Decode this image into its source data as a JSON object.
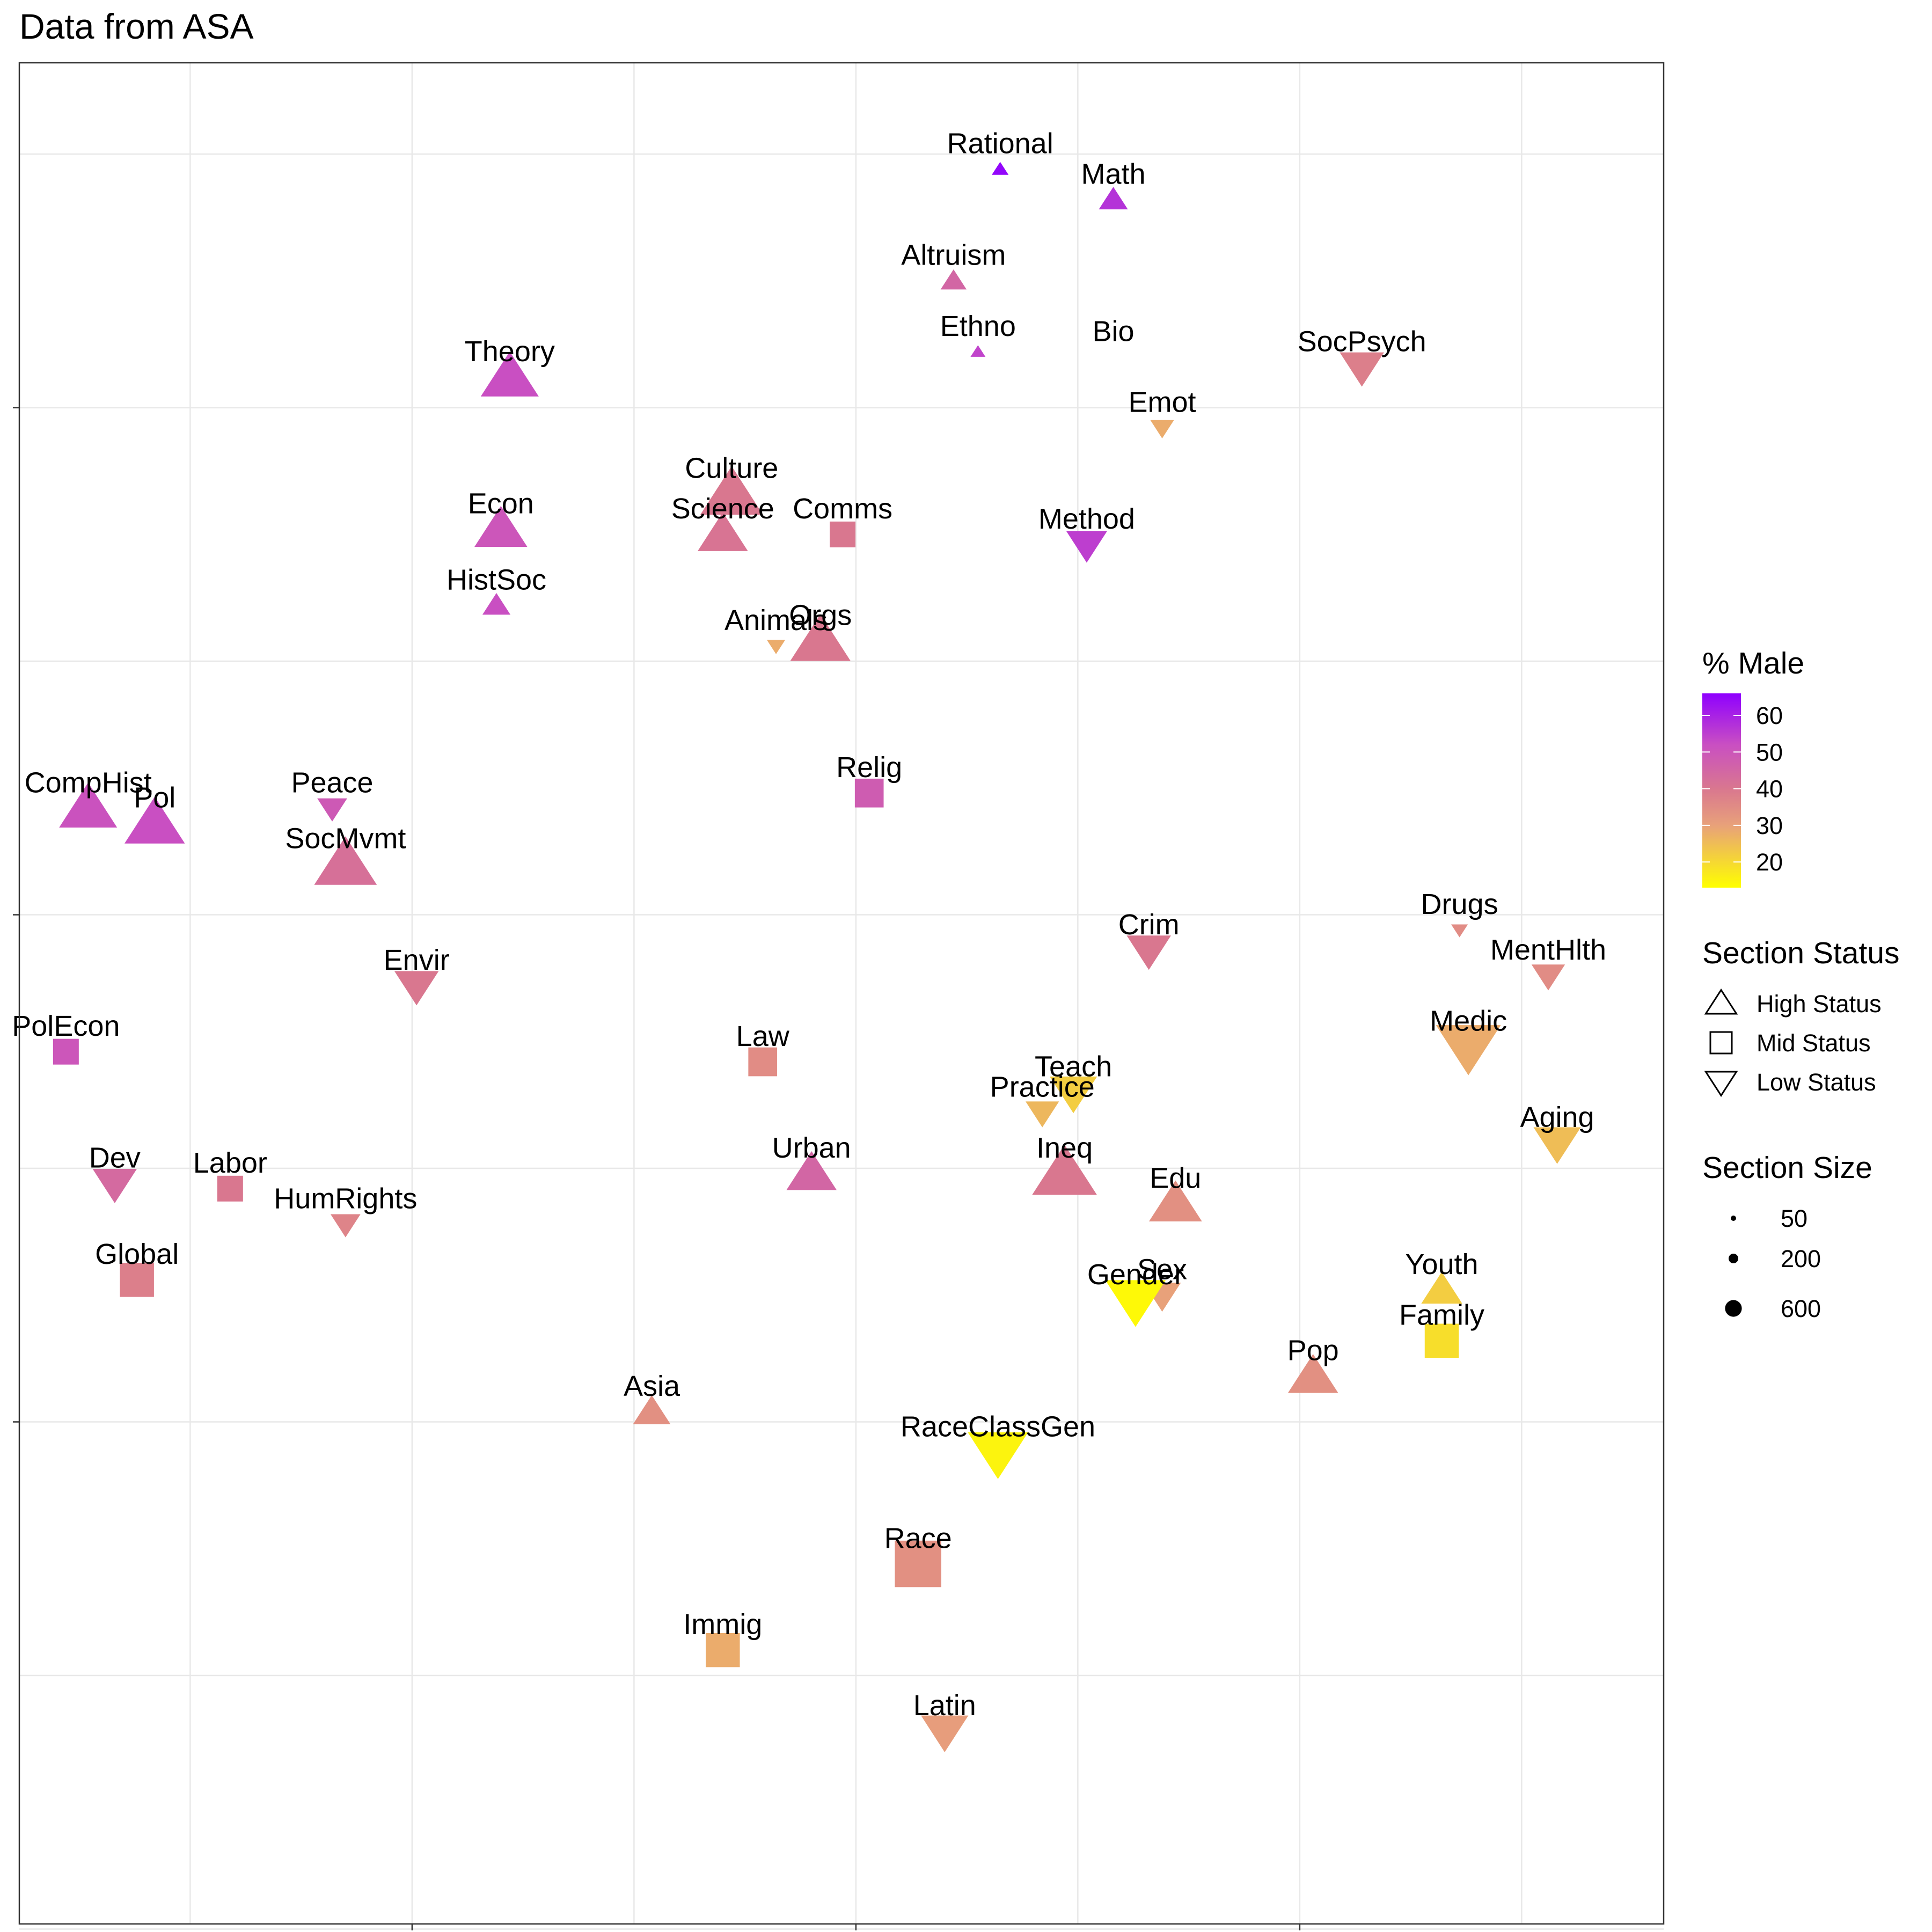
{
  "chart_data": {
    "type": "scatter",
    "title": "Data from ASA",
    "xlabel": "",
    "ylabel": "",
    "x_range": [
      -1.885,
      1.82
    ],
    "y_range": [
      -1.49,
      2.18
    ],
    "x_gridlines": [
      -1.5,
      -1.0,
      -0.5,
      0.0,
      0.5,
      1.0,
      1.5
    ],
    "y_gridlines": [
      2.0,
      1.5,
      1.0,
      0.5,
      0.0,
      -0.5,
      -1.0,
      -1.5
    ],
    "x_tick_marks": [
      -1.0,
      0.0,
      1.0
    ],
    "y_tick_marks": [
      1.5,
      0.5,
      -0.5
    ],
    "color_scale": {
      "title": "% Male",
      "min": 13,
      "max": 66,
      "stops": [
        {
          "value": 13,
          "color": "#ffff00"
        },
        {
          "value": 30,
          "color": "#e8a17a"
        },
        {
          "value": 40,
          "color": "#d9778f"
        },
        {
          "value": 52,
          "color": "#c94fc2"
        },
        {
          "value": 66,
          "color": "#8f00ff"
        }
      ],
      "ticks": [
        60,
        50,
        40,
        30,
        20
      ]
    },
    "shape_legend": {
      "title": "Section Status",
      "items": [
        {
          "shape": "triangle-up",
          "label": "High Status"
        },
        {
          "shape": "square",
          "label": "Mid Status"
        },
        {
          "shape": "triangle-down",
          "label": "Low Status"
        }
      ]
    },
    "size_legend": {
      "title": "Section Size",
      "items": [
        {
          "value": 50,
          "label": "50"
        },
        {
          "value": 200,
          "label": "200"
        },
        {
          "value": 600,
          "label": "600"
        }
      ]
    },
    "points": [
      {
        "label": "Rational",
        "x": 0.325,
        "y": 1.97,
        "shape": "triangle-up",
        "size": 50,
        "male": 65
      },
      {
        "label": "Math",
        "x": 0.58,
        "y": 1.91,
        "shape": "triangle-up",
        "size": 150,
        "male": 57
      },
      {
        "label": "Altruism",
        "x": 0.22,
        "y": 1.75,
        "shape": "triangle-up",
        "size": 120,
        "male": 45
      },
      {
        "label": "Ethno",
        "x": 0.275,
        "y": 1.61,
        "shape": "triangle-up",
        "size": 40,
        "male": 54
      },
      {
        "label": "Bio",
        "x": 0.58,
        "y": 1.6,
        "shape": "none",
        "size": 0,
        "male": 40
      },
      {
        "label": "SocPsych",
        "x": 1.14,
        "y": 1.58,
        "shape": "triangle-down",
        "size": 350,
        "male": 38
      },
      {
        "label": "Theory",
        "x": -0.78,
        "y": 1.56,
        "shape": "triangle-up",
        "size": 600,
        "male": 52
      },
      {
        "label": "Emot",
        "x": 0.69,
        "y": 1.46,
        "shape": "triangle-down",
        "size": 100,
        "male": 28
      },
      {
        "label": "Culture",
        "x": -0.28,
        "y": 1.33,
        "shape": "triangle-up",
        "size": 700,
        "male": 40
      },
      {
        "label": "Econ",
        "x": -0.8,
        "y": 1.26,
        "shape": "triangle-up",
        "size": 500,
        "male": 50
      },
      {
        "label": "Comms",
        "x": -0.03,
        "y": 1.25,
        "shape": "square",
        "size": 200,
        "male": 40
      },
      {
        "label": "Science",
        "x": -0.3,
        "y": 1.25,
        "shape": "triangle-up",
        "size": 450,
        "male": 41
      },
      {
        "label": "Method",
        "x": 0.52,
        "y": 1.23,
        "shape": "triangle-down",
        "size": 300,
        "male": 55
      },
      {
        "label": "HistSoc",
        "x": -0.81,
        "y": 1.11,
        "shape": "triangle-up",
        "size": 140,
        "male": 52
      },
      {
        "label": "Animals",
        "x": -0.18,
        "y": 1.03,
        "shape": "triangle-down",
        "size": 60,
        "male": 28
      },
      {
        "label": "Orgs",
        "x": -0.08,
        "y": 1.04,
        "shape": "triangle-up",
        "size": 650,
        "male": 40
      },
      {
        "label": "Relig",
        "x": 0.03,
        "y": 0.74,
        "shape": "square",
        "size": 250,
        "male": 48
      },
      {
        "label": "CompHist",
        "x": -1.73,
        "y": 0.71,
        "shape": "triangle-up",
        "size": 600,
        "male": 51
      },
      {
        "label": "Peace",
        "x": -1.18,
        "y": 0.71,
        "shape": "triangle-down",
        "size": 160,
        "male": 49
      },
      {
        "label": "Pol",
        "x": -1.58,
        "y": 0.68,
        "shape": "triangle-up",
        "size": 650,
        "male": 52
      },
      {
        "label": "SocMvmt",
        "x": -1.15,
        "y": 0.6,
        "shape": "triangle-up",
        "size": 700,
        "male": 42
      },
      {
        "label": "Drugs",
        "x": 1.36,
        "y": 0.47,
        "shape": "triangle-down",
        "size": 50,
        "male": 35
      },
      {
        "label": "Crim",
        "x": 0.66,
        "y": 0.43,
        "shape": "triangle-down",
        "size": 350,
        "male": 40
      },
      {
        "label": "MentHlth",
        "x": 1.56,
        "y": 0.38,
        "shape": "triangle-down",
        "size": 200,
        "male": 35
      },
      {
        "label": "Envir",
        "x": -0.99,
        "y": 0.36,
        "shape": "triangle-down",
        "size": 350,
        "male": 40
      },
      {
        "label": "Medic",
        "x": 1.38,
        "y": 0.24,
        "shape": "triangle-down",
        "size": 750,
        "male": 28
      },
      {
        "label": "PolEcon",
        "x": -1.78,
        "y": 0.23,
        "shape": "square",
        "size": 200,
        "male": 50
      },
      {
        "label": "Law",
        "x": -0.21,
        "y": 0.21,
        "shape": "square",
        "size": 250,
        "male": 35
      },
      {
        "label": "Teach",
        "x": 0.49,
        "y": 0.15,
        "shape": "triangle-down",
        "size": 400,
        "male": 22
      },
      {
        "label": "Practice",
        "x": 0.42,
        "y": 0.11,
        "shape": "triangle-down",
        "size": 200,
        "male": 26
      },
      {
        "label": "Aging",
        "x": 1.58,
        "y": 0.05,
        "shape": "triangle-down",
        "size": 400,
        "male": 25
      },
      {
        "label": "Ineq",
        "x": 0.47,
        "y": -0.01,
        "shape": "triangle-up",
        "size": 750,
        "male": 40
      },
      {
        "label": "Urban",
        "x": -0.1,
        "y": -0.01,
        "shape": "triangle-up",
        "size": 450,
        "male": 45
      },
      {
        "label": "Dev",
        "x": -1.67,
        "y": -0.03,
        "shape": "triangle-down",
        "size": 350,
        "male": 44
      },
      {
        "label": "Labor",
        "x": -1.41,
        "y": -0.04,
        "shape": "square",
        "size": 200,
        "male": 40
      },
      {
        "label": "Edu",
        "x": 0.72,
        "y": -0.07,
        "shape": "triangle-up",
        "size": 500,
        "male": 34
      },
      {
        "label": "HumRights",
        "x": -1.15,
        "y": -0.11,
        "shape": "triangle-down",
        "size": 160,
        "male": 37
      },
      {
        "label": "Global",
        "x": -1.62,
        "y": -0.22,
        "shape": "square",
        "size": 350,
        "male": 38
      },
      {
        "label": "Youth",
        "x": 1.32,
        "y": -0.24,
        "shape": "triangle-up",
        "size": 300,
        "male": 22
      },
      {
        "label": "Sex",
        "x": 0.69,
        "y": -0.25,
        "shape": "triangle-down",
        "size": 250,
        "male": 30
      },
      {
        "label": "Gender",
        "x": 0.63,
        "y": -0.26,
        "shape": "triangle-down",
        "size": 650,
        "male": 14
      },
      {
        "label": "Family",
        "x": 1.32,
        "y": -0.34,
        "shape": "square",
        "size": 350,
        "male": 19
      },
      {
        "label": "Pop",
        "x": 1.03,
        "y": -0.41,
        "shape": "triangle-up",
        "size": 450,
        "male": 34
      },
      {
        "label": "Asia",
        "x": -0.46,
        "y": -0.48,
        "shape": "triangle-up",
        "size": 250,
        "male": 34
      },
      {
        "label": "RaceClassGen",
        "x": 0.32,
        "y": -0.56,
        "shape": "triangle-down",
        "size": 650,
        "male": 15
      },
      {
        "label": "Race",
        "x": 0.14,
        "y": -0.78,
        "shape": "square",
        "size": 650,
        "male": 34
      },
      {
        "label": "Immig",
        "x": -0.3,
        "y": -0.95,
        "shape": "square",
        "size": 350,
        "male": 28
      },
      {
        "label": "Latin",
        "x": 0.2,
        "y": -1.11,
        "shape": "triangle-down",
        "size": 400,
        "male": 31
      }
    ]
  }
}
